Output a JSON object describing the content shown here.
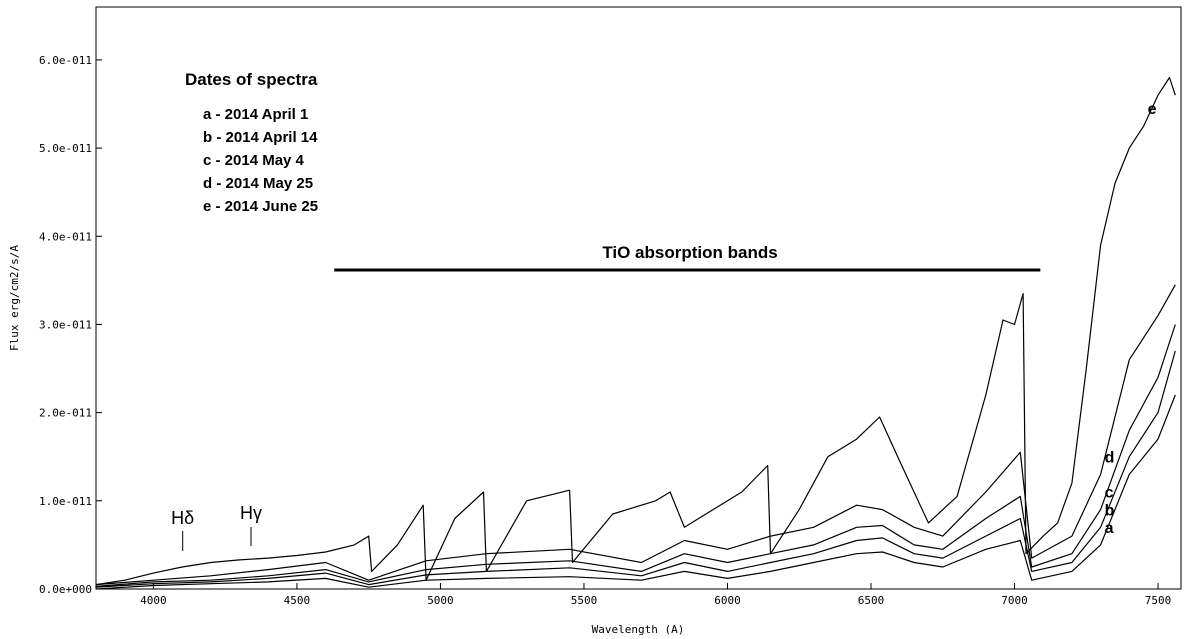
{
  "chart_data": {
    "type": "line",
    "title": "",
    "xlabel": "Wavelength (A)",
    "ylabel": "Flux erg/cm2/s/A",
    "xlim": [
      3800,
      7580
    ],
    "ylim": [
      0,
      6.6e-11
    ],
    "x_ticks": [
      4000,
      4500,
      5000,
      5500,
      6000,
      6500,
      7000,
      7500
    ],
    "x_tick_labels": [
      "4000",
      "4500",
      "5000",
      "5500",
      "6000",
      "6500",
      "7000",
      "7500"
    ],
    "y_ticks": [
      0,
      1e-11,
      2e-11,
      3e-11,
      4e-11,
      5e-11,
      6e-11
    ],
    "y_tick_labels": [
      "0.0e+000",
      "1.0e-011",
      "2.0e-011",
      "3.0e-011",
      "4.0e-011",
      "5.0e-011",
      "6.0e-011"
    ],
    "legend": {
      "title": "Dates of spectra",
      "entries": [
        "a - 2014 April 1",
        "b - 2014 April 14",
        "c - 2014 May 4",
        "d - 2014 May 25",
        "e - 2014 June 25"
      ]
    },
    "annotations": {
      "tio_label": "TiO absorption bands",
      "tio_range": [
        4630,
        7090
      ],
      "h_delta": {
        "symbol": "H",
        "greek": "δ",
        "x": 4102
      },
      "h_gamma": {
        "symbol": "H",
        "greek": "γ",
        "x": 4340
      }
    },
    "series": [
      {
        "name": "a",
        "x": [
          3800,
          4000,
          4200,
          4400,
          4600,
          4750,
          4950,
          5160,
          5450,
          5700,
          5850,
          6000,
          6150,
          6300,
          6450,
          6540,
          6650,
          6750,
          6900,
          7020,
          7060,
          7200,
          7300,
          7400,
          7500,
          7560
        ],
        "values": [
          4e-15,
          4e-13,
          6e-13,
          8e-13,
          1.2e-12,
          2e-13,
          1e-12,
          1.2e-12,
          1.4e-12,
          1e-12,
          2e-12,
          1.2e-12,
          2e-12,
          3e-12,
          4e-12,
          4.2e-12,
          3e-12,
          2.5e-12,
          4.5e-12,
          5.5e-12,
          1e-12,
          2e-12,
          5e-12,
          1.3e-11,
          1.7e-11,
          2.2e-11
        ]
      },
      {
        "name": "b",
        "x": [
          3800,
          4000,
          4200,
          4400,
          4600,
          4750,
          4950,
          5160,
          5450,
          5700,
          5850,
          6000,
          6150,
          6300,
          6450,
          6540,
          6650,
          6750,
          6900,
          7020,
          7060,
          7200,
          7300,
          7400,
          7500,
          7560
        ],
        "values": [
          2e-13,
          6e-13,
          8e-13,
          1.2e-12,
          1.8e-12,
          5e-13,
          1.6e-12,
          2e-12,
          2.4e-12,
          1.5e-12,
          3e-12,
          2e-12,
          3e-12,
          4e-12,
          5.5e-12,
          5.8e-12,
          4e-12,
          3.5e-12,
          6e-12,
          8e-12,
          2e-12,
          3e-12,
          7e-12,
          1.5e-11,
          2e-11,
          2.7e-11
        ]
      },
      {
        "name": "c",
        "x": [
          3800,
          4000,
          4200,
          4400,
          4600,
          4750,
          4950,
          5160,
          5450,
          5700,
          5850,
          6000,
          6150,
          6300,
          6450,
          6540,
          6650,
          6750,
          6900,
          7020,
          7060,
          7200,
          7300,
          7400,
          7500,
          7560
        ],
        "values": [
          3e-13,
          8e-13,
          1e-12,
          1.5e-12,
          2.2e-12,
          8e-13,
          2.2e-12,
          2.8e-12,
          3.2e-12,
          2e-12,
          4e-12,
          3e-12,
          4e-12,
          5e-12,
          7e-12,
          7.2e-12,
          5e-12,
          4.5e-12,
          8e-12,
          1.05e-11,
          2.5e-12,
          4e-12,
          9e-12,
          1.8e-11,
          2.4e-11,
          3e-11
        ]
      },
      {
        "name": "d",
        "x": [
          3800,
          4000,
          4200,
          4400,
          4600,
          4750,
          4950,
          5160,
          5450,
          5700,
          5850,
          6000,
          6150,
          6300,
          6450,
          6540,
          6650,
          6750,
          6900,
          7020,
          7060,
          7200,
          7300,
          7400,
          7500,
          7560
        ],
        "values": [
          5e-13,
          1e-12,
          1.5e-12,
          2.2e-12,
          3e-12,
          1e-12,
          3.2e-12,
          4e-12,
          4.5e-12,
          3e-12,
          5.5e-12,
          4.5e-12,
          6e-12,
          7e-12,
          9.5e-12,
          9e-12,
          7e-12,
          6e-12,
          1.1e-11,
          1.55e-11,
          3.5e-12,
          6e-12,
          1.3e-11,
          2.6e-11,
          3.1e-11,
          3.45e-11
        ]
      },
      {
        "name": "e",
        "x": [
          3800,
          3900,
          4000,
          4100,
          4200,
          4300,
          4400,
          4500,
          4600,
          4700,
          4750,
          4760,
          4850,
          4940,
          4950,
          5050,
          5150,
          5160,
          5300,
          5450,
          5460,
          5600,
          5750,
          5800,
          5850,
          5950,
          6050,
          6140,
          6150,
          6250,
          6350,
          6450,
          6530,
          6600,
          6700,
          6800,
          6900,
          6960,
          7000,
          7030,
          7040,
          7100,
          7150,
          7200,
          7250,
          7300,
          7350,
          7400,
          7450,
          7500,
          7540,
          7560
        ],
        "values": [
          5e-13,
          1e-12,
          1.8e-12,
          2.5e-12,
          3e-12,
          3.3e-12,
          3.5e-12,
          3.8e-12,
          4.2e-12,
          5e-12,
          6e-12,
          2e-12,
          5e-12,
          9.5e-12,
          1e-12,
          8e-12,
          1.1e-11,
          2e-12,
          1e-11,
          1.12e-11,
          3e-12,
          8.5e-12,
          1e-11,
          1.1e-11,
          7e-12,
          9e-12,
          1.1e-11,
          1.4e-11,
          4e-12,
          9e-12,
          1.5e-11,
          1.7e-11,
          1.95e-11,
          1.45e-11,
          7.5e-12,
          1.05e-11,
          2.2e-11,
          3.05e-11,
          3e-11,
          3.35e-11,
          4e-12,
          6e-12,
          7.5e-12,
          1.2e-11,
          2.5e-11,
          3.9e-11,
          4.6e-11,
          5e-11,
          5.25e-11,
          5.6e-11,
          5.8e-11,
          5.6e-11
        ]
      }
    ]
  }
}
